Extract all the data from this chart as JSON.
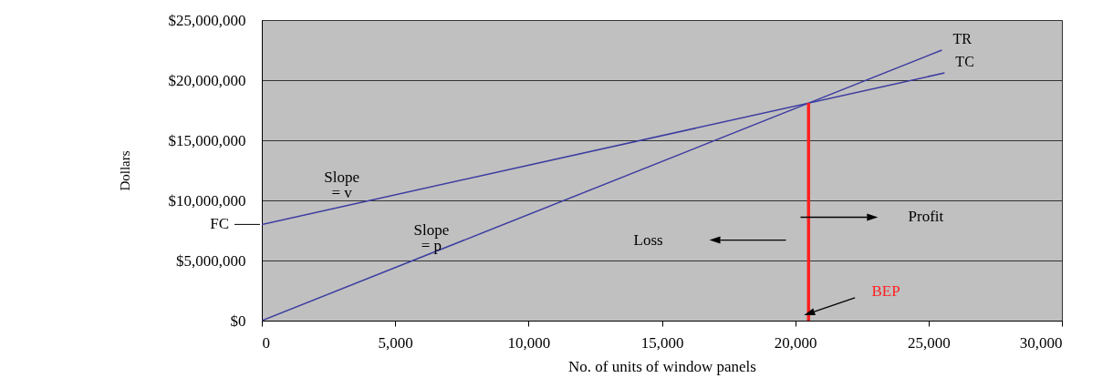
{
  "chart_data": {
    "type": "line",
    "xlabel": "No. of units of window panels",
    "ylabel": "Dollars",
    "xlim": [
      0,
      30000
    ],
    "ylim": [
      0,
      25000000
    ],
    "xticks": [
      {
        "value": 0,
        "label": "0"
      },
      {
        "value": 5000,
        "label": "5,000"
      },
      {
        "value": 10000,
        "label": "10,000"
      },
      {
        "value": 15000,
        "label": "15,000"
      },
      {
        "value": 20000,
        "label": "20,000"
      },
      {
        "value": 25000,
        "label": "25,000"
      },
      {
        "value": 30000,
        "label": "30,000"
      }
    ],
    "yticks": [
      {
        "value": 0,
        "label": "$0"
      },
      {
        "value": 5000000,
        "label": "$5,000,000"
      },
      {
        "value": 10000000,
        "label": "$10,000,000"
      },
      {
        "value": 15000000,
        "label": "$15,000,000"
      },
      {
        "value": 20000000,
        "label": "$20,000,000"
      },
      {
        "value": 25000000,
        "label": "$25,000,000"
      }
    ],
    "grid": "y",
    "marker": "none",
    "line_style": "solid",
    "series": [
      {
        "name": "TR",
        "color": "#3c3ca0",
        "x": [
          0,
          25500
        ],
        "values": [
          0,
          22500000
        ]
      },
      {
        "name": "TC",
        "color": "#3c3ca0",
        "x": [
          0,
          25600
        ],
        "values": [
          8000000,
          20600000
        ]
      },
      {
        "color": "#ff2020",
        "x": [
          20500,
          20500
        ],
        "values": [
          0,
          18100000
        ]
      }
    ],
    "ref_lines": [
      {
        "axis": "y",
        "value": 8000000,
        "label": "FC"
      }
    ],
    "annotations": [
      "Slope\n= v",
      "Slope\n= p",
      "Loss",
      "Profit",
      "BEP"
    ]
  }
}
